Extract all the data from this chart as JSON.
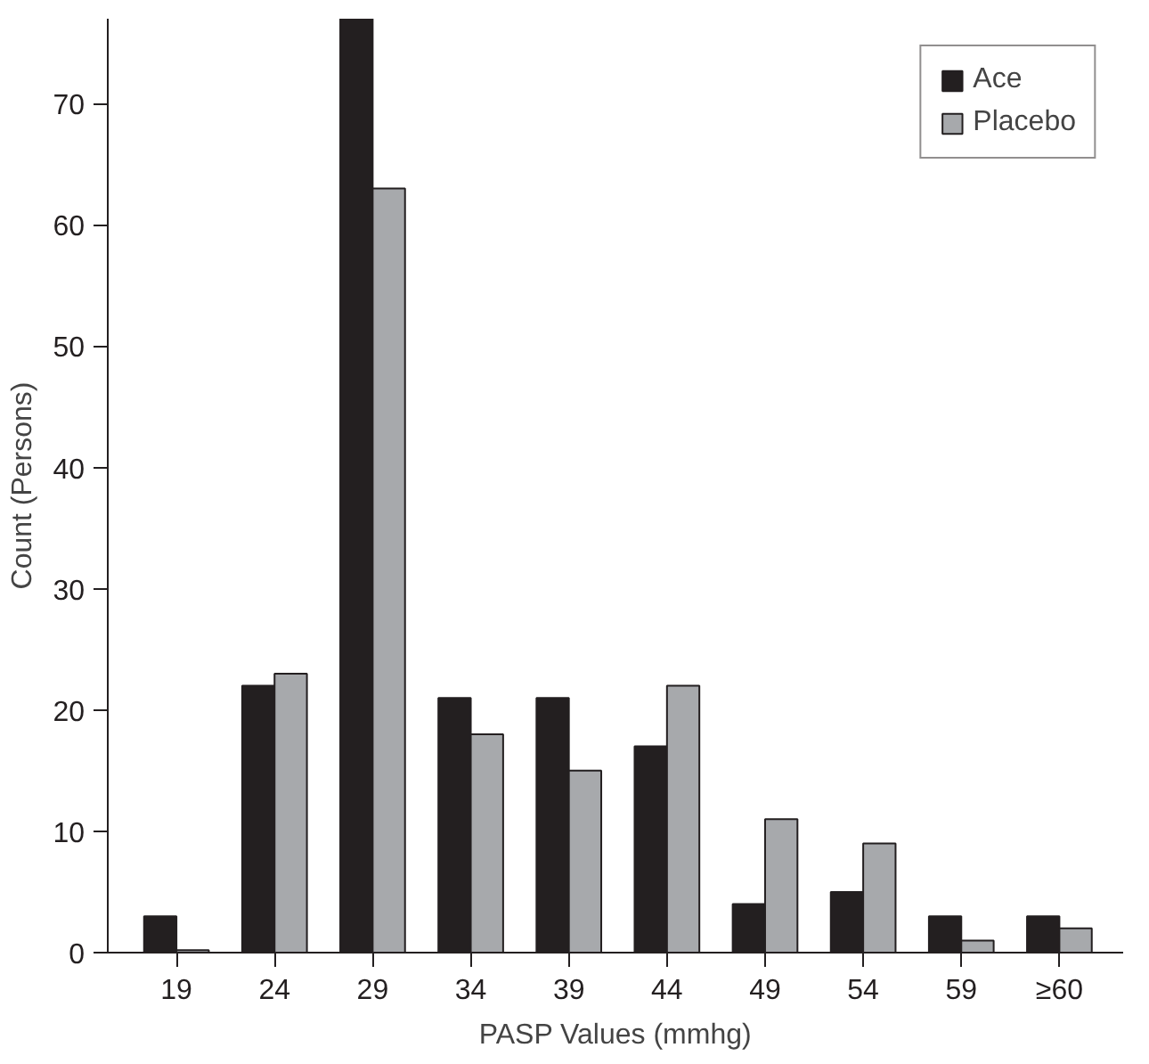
{
  "chart_data": {
    "type": "bar",
    "xlabel": "PASP Values (mmhg)",
    "ylabel": "Count (Persons)",
    "categories": [
      "19",
      "24",
      "29",
      "34",
      "39",
      "44",
      "49",
      "54",
      "59",
      "≥60"
    ],
    "series": [
      {
        "name": "Ace",
        "color": "#231f20",
        "values": [
          3,
          22,
          77,
          21,
          21,
          17,
          4,
          5,
          3,
          3
        ]
      },
      {
        "name": "Placebo",
        "color": "#a7a9ac",
        "values": [
          0.2,
          23,
          63,
          18,
          15,
          22,
          11,
          9,
          1,
          2
        ]
      }
    ],
    "ylim": [
      0,
      77
    ],
    "yticks": [
      0,
      10,
      20,
      30,
      40,
      50,
      60,
      70
    ],
    "grid": false,
    "legend": "top right"
  }
}
